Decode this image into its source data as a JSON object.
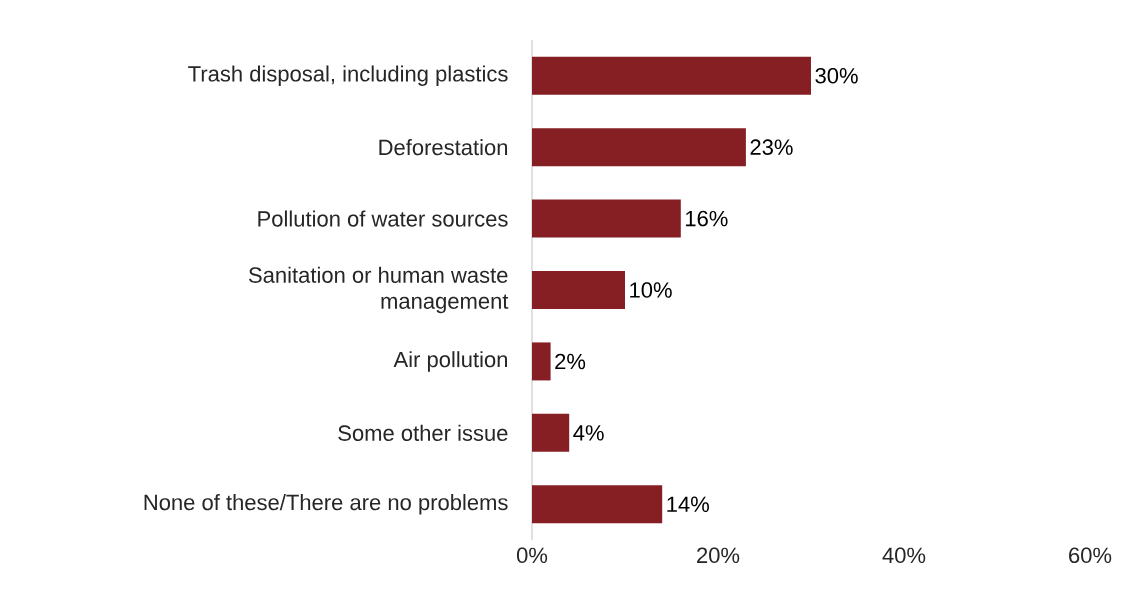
{
  "chart_data": {
    "type": "bar",
    "orientation": "horizontal",
    "categories": [
      "Trash disposal, including plastics",
      "Deforestation",
      "Pollution of water sources",
      "Sanitation or human waste management",
      "Air pollution",
      "Some other issue",
      "None of these/There are no problems"
    ],
    "values": [
      30,
      23,
      16,
      10,
      2,
      4,
      14
    ],
    "value_labels": [
      "30%",
      "23%",
      "16%",
      "10%",
      "2%",
      "4%",
      "14%"
    ],
    "color": "#861f24",
    "xlim": [
      0,
      60
    ],
    "xticks": [
      {
        "value": 0,
        "label": "0%"
      },
      {
        "value": 20,
        "label": "20%"
      },
      {
        "value": 40,
        "label": "40%"
      },
      {
        "value": 60,
        "label": "60%"
      }
    ],
    "grid": false
  }
}
